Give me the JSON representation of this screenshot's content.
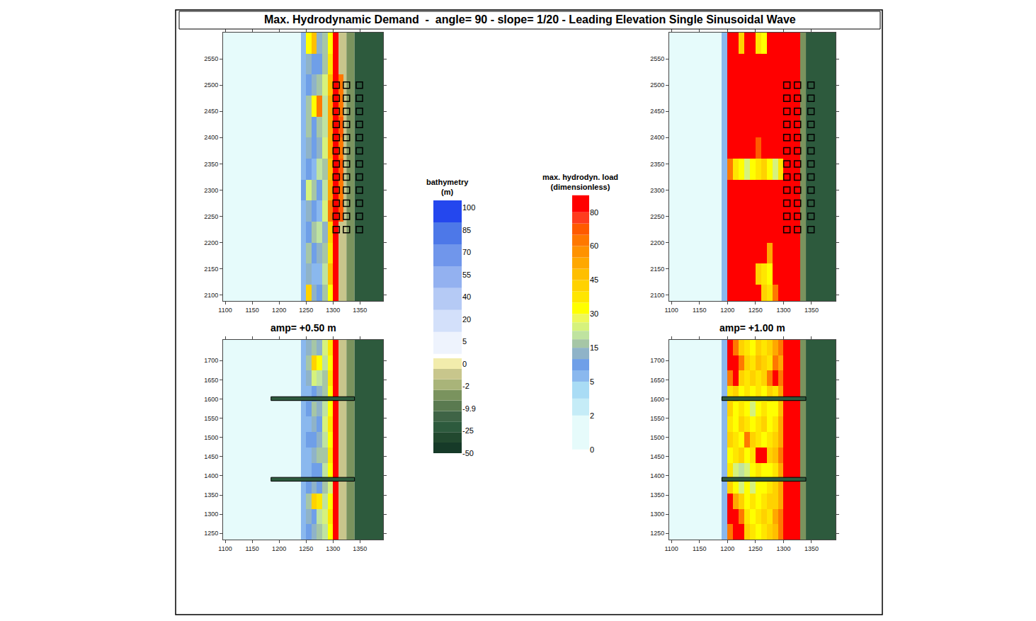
{
  "title": "Max. Hydrodynamic Demand  -  angle= 90 - slope= 1/20 - Leading Elevation Single Sinusoidal Wave",
  "colorbars": {
    "bathymetry": {
      "title": [
        "bathymetry",
        "(m)"
      ],
      "ticks": [
        100,
        85,
        70,
        55,
        40,
        20,
        5,
        0,
        -2,
        -9.9,
        -25,
        -50
      ]
    },
    "load": {
      "title": [
        "max. hydrodyn. load",
        "(dimensionless)"
      ],
      "ticks": [
        0,
        2,
        5,
        15,
        30,
        45,
        60,
        80
      ],
      "range": [
        0,
        90
      ]
    }
  },
  "land": {
    "x_edges": [
      1290,
      1325,
      1340,
      1393
    ],
    "values": [
      -1,
      -4,
      -20
    ]
  },
  "chart_data": [
    {
      "type": "heatmap",
      "xlim": [
        1096,
        1393
      ],
      "ylim": [
        2089,
        2600
      ],
      "xticks": [
        1100,
        1150,
        1200,
        1250,
        1300,
        1350
      ],
      "yticks": [
        2100,
        2150,
        2200,
        2250,
        2300,
        2350,
        2400,
        2450,
        2500,
        2550
      ],
      "x_edges": [
        1096,
        1180,
        1190,
        1200,
        1210,
        1220,
        1230,
        1240,
        1250,
        1260,
        1270,
        1280,
        1290,
        1300,
        1310,
        1320,
        1330,
        1340
      ],
      "y_edges": [
        2080,
        2120,
        2160,
        2200,
        2240,
        2280,
        2320,
        2360,
        2400,
        2440,
        2480,
        2520,
        2560,
        2600
      ],
      "z": [
        [
          0,
          0,
          0,
          0,
          0,
          0,
          0,
          8,
          40,
          12,
          10,
          15,
          30,
          85,
          null,
          null,
          null
        ],
        [
          0,
          0,
          0,
          0,
          0,
          0,
          0,
          6,
          12,
          8,
          8,
          20,
          45,
          85,
          null,
          null,
          null
        ],
        [
          0,
          0,
          0,
          0,
          0,
          0,
          0,
          7,
          18,
          10,
          12,
          18,
          35,
          85,
          null,
          null,
          null
        ],
        [
          0,
          0,
          0,
          0,
          0,
          0,
          0,
          6,
          10,
          15,
          20,
          12,
          40,
          85,
          null,
          null,
          null
        ],
        [
          0,
          0,
          0,
          0,
          0,
          0,
          0,
          8,
          12,
          10,
          8,
          25,
          60,
          85,
          70,
          null,
          null
        ],
        [
          0,
          0,
          0,
          0,
          0,
          0,
          0,
          9,
          25,
          18,
          10,
          20,
          50,
          85,
          60,
          null,
          null
        ],
        [
          0,
          0,
          0,
          0,
          0,
          0,
          0,
          7,
          10,
          8,
          20,
          15,
          45,
          85,
          70,
          null,
          null
        ],
        [
          0,
          0,
          0,
          0,
          0,
          0,
          0,
          6,
          12,
          10,
          12,
          25,
          55,
          85,
          60,
          null,
          null
        ],
        [
          0,
          0,
          0,
          0,
          0,
          0,
          0,
          7,
          18,
          10,
          15,
          20,
          50,
          85,
          70,
          null,
          null
        ],
        [
          0,
          0,
          0,
          0,
          0,
          0,
          0,
          8,
          15,
          30,
          60,
          20,
          55,
          85,
          65,
          null,
          null
        ],
        [
          0,
          0,
          0,
          0,
          0,
          0,
          0,
          6,
          10,
          12,
          15,
          25,
          45,
          85,
          60,
          null,
          null
        ],
        [
          0,
          0,
          0,
          0,
          0,
          0,
          0,
          7,
          12,
          10,
          10,
          18,
          35,
          85,
          null,
          null,
          null
        ],
        [
          0,
          0,
          0,
          0,
          0,
          0,
          0,
          8,
          30,
          45,
          12,
          15,
          30,
          85,
          null,
          null,
          null
        ]
      ],
      "buildings": {
        "x": [
          1306,
          1325,
          1349
        ],
        "y": [
          2225,
          2250,
          2275,
          2300,
          2325,
          2350,
          2375,
          2400,
          2425,
          2450,
          2475,
          2500
        ]
      }
    },
    {
      "type": "heatmap",
      "xlim": [
        1096,
        1393
      ],
      "ylim": [
        2089,
        2600
      ],
      "xticks": [
        1100,
        1150,
        1200,
        1250,
        1300,
        1350
      ],
      "yticks": [
        2100,
        2150,
        2200,
        2250,
        2300,
        2350,
        2400,
        2450,
        2500,
        2550
      ],
      "x_edges": [
        1096,
        1180,
        1190,
        1200,
        1210,
        1220,
        1230,
        1240,
        1250,
        1260,
        1270,
        1280,
        1290,
        1300,
        1310,
        1320,
        1330,
        1340
      ],
      "y_edges": [
        2080,
        2120,
        2160,
        2200,
        2240,
        2280,
        2320,
        2360,
        2400,
        2440,
        2480,
        2520,
        2560,
        2600
      ],
      "z": [
        [
          0,
          0,
          5,
          85,
          85,
          85,
          85,
          85,
          85,
          40,
          35,
          60,
          85,
          85,
          85,
          85,
          null
        ],
        [
          0,
          0,
          5,
          85,
          85,
          85,
          85,
          85,
          40,
          35,
          30,
          85,
          85,
          85,
          85,
          85,
          null
        ],
        [
          0,
          0,
          5,
          85,
          85,
          85,
          85,
          85,
          85,
          85,
          50,
          85,
          85,
          85,
          85,
          85,
          null
        ],
        [
          0,
          0,
          5,
          85,
          85,
          85,
          85,
          85,
          85,
          85,
          85,
          85,
          85,
          85,
          85,
          85,
          null
        ],
        [
          0,
          0,
          5,
          85,
          85,
          85,
          85,
          85,
          85,
          85,
          85,
          85,
          85,
          85,
          85,
          85,
          null
        ],
        [
          0,
          0,
          5,
          85,
          85,
          85,
          85,
          85,
          85,
          85,
          85,
          85,
          85,
          85,
          85,
          85,
          null
        ],
        [
          0,
          0,
          5,
          60,
          35,
          30,
          25,
          30,
          35,
          40,
          30,
          25,
          35,
          85,
          85,
          85,
          null
        ],
        [
          0,
          0,
          5,
          85,
          85,
          85,
          85,
          85,
          70,
          85,
          85,
          85,
          85,
          85,
          85,
          85,
          null
        ],
        [
          0,
          0,
          5,
          85,
          85,
          85,
          85,
          85,
          85,
          85,
          85,
          85,
          85,
          85,
          85,
          85,
          null
        ],
        [
          0,
          0,
          5,
          85,
          85,
          85,
          85,
          85,
          85,
          85,
          85,
          85,
          85,
          85,
          85,
          85,
          null
        ],
        [
          0,
          0,
          5,
          85,
          85,
          85,
          85,
          85,
          85,
          85,
          85,
          85,
          85,
          85,
          85,
          85,
          null
        ],
        [
          0,
          0,
          5,
          85,
          85,
          85,
          85,
          85,
          85,
          85,
          85,
          85,
          85,
          85,
          85,
          85,
          null
        ],
        [
          0,
          0,
          5,
          85,
          85,
          40,
          85,
          85,
          35,
          30,
          85,
          85,
          85,
          85,
          85,
          85,
          null
        ]
      ],
      "buildings": {
        "x": [
          1306,
          1325,
          1349
        ],
        "y": [
          2225,
          2250,
          2275,
          2300,
          2325,
          2350,
          2375,
          2400,
          2425,
          2450,
          2475,
          2500
        ]
      }
    },
    {
      "type": "heatmap",
      "label": "amp= +0.50 m",
      "xlim": [
        1096,
        1393
      ],
      "ylim": [
        1234,
        1754
      ],
      "xticks": [
        1100,
        1150,
        1200,
        1250,
        1300,
        1350
      ],
      "yticks": [
        1250,
        1300,
        1350,
        1400,
        1450,
        1500,
        1550,
        1600,
        1650,
        1700
      ],
      "x_edges": [
        1096,
        1180,
        1190,
        1200,
        1210,
        1220,
        1230,
        1240,
        1250,
        1260,
        1270,
        1280,
        1290,
        1300,
        1310,
        1320,
        1330,
        1340
      ],
      "y_edges": [
        1234,
        1274,
        1314,
        1354,
        1394,
        1434,
        1474,
        1514,
        1554,
        1594,
        1634,
        1674,
        1714,
        1754
      ],
      "z": [
        [
          0,
          0,
          0,
          0,
          0,
          0,
          0,
          8,
          10,
          12,
          15,
          20,
          30,
          85,
          null,
          null,
          null
        ],
        [
          0,
          0,
          0,
          0,
          0,
          0,
          0,
          8,
          12,
          10,
          20,
          25,
          35,
          85,
          null,
          null,
          null
        ],
        [
          0,
          0,
          0,
          0,
          0,
          0,
          0,
          7,
          15,
          40,
          35,
          20,
          30,
          85,
          null,
          null,
          null
        ],
        [
          0,
          0,
          0,
          0,
          0,
          0,
          0,
          6,
          10,
          12,
          10,
          15,
          25,
          85,
          null,
          null,
          null
        ],
        [
          0,
          0,
          0,
          0,
          0,
          0,
          0,
          6,
          8,
          10,
          10,
          20,
          30,
          85,
          null,
          null,
          null
        ],
        [
          0,
          0,
          0,
          0,
          0,
          0,
          0,
          7,
          8,
          12,
          15,
          18,
          35,
          85,
          null,
          null,
          null
        ],
        [
          0,
          0,
          0,
          0,
          0,
          0,
          0,
          6,
          10,
          10,
          12,
          20,
          30,
          85,
          null,
          null,
          null
        ],
        [
          0,
          0,
          0,
          0,
          0,
          0,
          0,
          8,
          8,
          12,
          10,
          25,
          35,
          85,
          null,
          null,
          null
        ],
        [
          0,
          0,
          0,
          0,
          0,
          0,
          0,
          7,
          10,
          15,
          12,
          20,
          30,
          85,
          null,
          null,
          null
        ],
        [
          0,
          0,
          0,
          0,
          0,
          0,
          0,
          7,
          8,
          10,
          12,
          18,
          30,
          85,
          null,
          null,
          null
        ],
        [
          0,
          0,
          0,
          0,
          0,
          0,
          0,
          8,
          12,
          25,
          20,
          15,
          35,
          85,
          null,
          null,
          null
        ],
        [
          0,
          0,
          0,
          0,
          0,
          0,
          0,
          6,
          15,
          40,
          30,
          20,
          30,
          85,
          null,
          null,
          null
        ],
        [
          0,
          0,
          0,
          0,
          0,
          0,
          0,
          8,
          12,
          15,
          12,
          25,
          35,
          85,
          null,
          null,
          null
        ]
      ],
      "jetties": [
        {
          "x": [
            1185,
            1340
          ],
          "y": [
            1386,
            1396
          ]
        },
        {
          "x": [
            1185,
            1340
          ],
          "y": [
            1596,
            1606
          ]
        }
      ]
    },
    {
      "type": "heatmap",
      "label": "amp= +1.00 m",
      "xlim": [
        1096,
        1393
      ],
      "ylim": [
        1234,
        1754
      ],
      "xticks": [
        1100,
        1150,
        1200,
        1250,
        1300,
        1350
      ],
      "yticks": [
        1250,
        1300,
        1350,
        1400,
        1450,
        1500,
        1550,
        1600,
        1650,
        1700
      ],
      "x_edges": [
        1096,
        1180,
        1190,
        1200,
        1210,
        1220,
        1230,
        1240,
        1250,
        1260,
        1270,
        1280,
        1290,
        1300,
        1310,
        1320,
        1330,
        1340
      ],
      "y_edges": [
        1234,
        1274,
        1314,
        1354,
        1394,
        1434,
        1474,
        1514,
        1554,
        1594,
        1634,
        1674,
        1714,
        1754
      ],
      "z": [
        [
          0,
          0,
          6,
          60,
          85,
          85,
          40,
          35,
          30,
          35,
          40,
          45,
          60,
          85,
          85,
          85,
          null
        ],
        [
          0,
          0,
          6,
          85,
          85,
          60,
          35,
          30,
          35,
          40,
          35,
          50,
          60,
          85,
          85,
          85,
          null
        ],
        [
          0,
          0,
          6,
          85,
          50,
          40,
          30,
          35,
          30,
          35,
          40,
          40,
          55,
          85,
          85,
          85,
          null
        ],
        [
          0,
          0,
          6,
          40,
          30,
          25,
          30,
          25,
          30,
          30,
          35,
          40,
          50,
          85,
          85,
          85,
          null
        ],
        [
          0,
          0,
          6,
          35,
          25,
          20,
          25,
          30,
          35,
          30,
          30,
          35,
          50,
          85,
          85,
          85,
          null
        ],
        [
          0,
          0,
          6,
          30,
          35,
          40,
          30,
          35,
          85,
          85,
          40,
          45,
          60,
          85,
          85,
          85,
          null
        ],
        [
          0,
          0,
          6,
          40,
          35,
          30,
          60,
          40,
          35,
          30,
          35,
          40,
          55,
          85,
          85,
          85,
          null
        ],
        [
          0,
          0,
          6,
          35,
          30,
          40,
          35,
          30,
          35,
          40,
          30,
          35,
          50,
          85,
          85,
          85,
          null
        ],
        [
          0,
          0,
          6,
          40,
          30,
          35,
          30,
          25,
          30,
          35,
          30,
          30,
          45,
          85,
          85,
          85,
          null
        ],
        [
          0,
          0,
          6,
          35,
          40,
          30,
          35,
          30,
          35,
          30,
          40,
          35,
          50,
          85,
          85,
          85,
          null
        ],
        [
          0,
          0,
          6,
          60,
          85,
          40,
          35,
          40,
          35,
          40,
          60,
          85,
          60,
          85,
          85,
          85,
          null
        ],
        [
          0,
          0,
          6,
          85,
          85,
          60,
          40,
          35,
          45,
          40,
          35,
          60,
          55,
          85,
          85,
          85,
          null
        ],
        [
          0,
          0,
          6,
          85,
          60,
          40,
          35,
          30,
          40,
          35,
          40,
          50,
          60,
          85,
          85,
          85,
          null
        ]
      ],
      "jetties": [
        {
          "x": [
            1190,
            1340
          ],
          "y": [
            1386,
            1396
          ]
        },
        {
          "x": [
            1190,
            1340
          ],
          "y": [
            1596,
            1606
          ]
        }
      ]
    }
  ]
}
